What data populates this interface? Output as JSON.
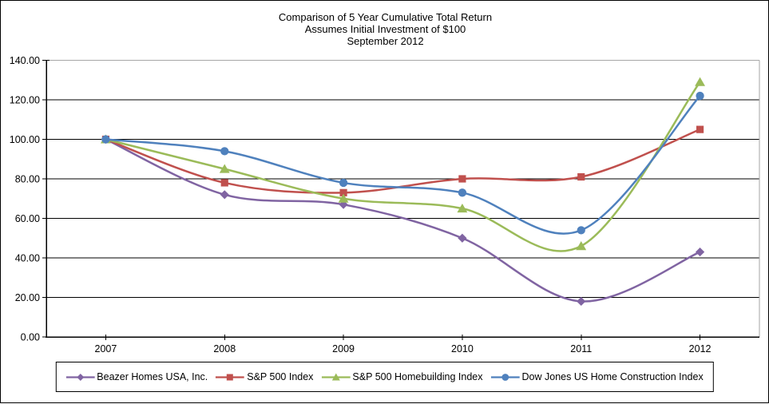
{
  "chart": {
    "title_lines": [
      "Comparison of 5 Year Cumulative Total Return",
      "Assumes Initial Investment of $100",
      "September 2012"
    ]
  },
  "chart_data": {
    "type": "line",
    "title": "Comparison of 5 Year Cumulative Total Return",
    "subtitle": "Assumes Initial Investment of $100",
    "period_label": "September 2012",
    "categories": [
      "2007",
      "2008",
      "2009",
      "2010",
      "2011",
      "2012"
    ],
    "series": [
      {
        "name": "Beazer Homes USA, Inc.",
        "marker": "diamond",
        "color": "#8064A2",
        "values": [
          100,
          72,
          67,
          50,
          18,
          43
        ]
      },
      {
        "name": "S&P 500 Index",
        "marker": "square",
        "color": "#C0504D",
        "values": [
          100,
          78,
          73,
          80,
          81,
          105
        ]
      },
      {
        "name": "S&P 500 Homebuilding Index",
        "marker": "triangle",
        "color": "#9BBB59",
        "values": [
          100,
          85,
          70,
          65,
          46,
          129
        ]
      },
      {
        "name": "Dow Jones US Home Construction Index",
        "marker": "circle",
        "color": "#4F81BD",
        "values": [
          100,
          94,
          78,
          73,
          54,
          122
        ]
      }
    ],
    "y_ticks": [
      "0.00",
      "20.00",
      "40.00",
      "60.00",
      "80.00",
      "100.00",
      "120.00",
      "140.00"
    ],
    "ylim": [
      0,
      140
    ],
    "xlabel": "",
    "ylabel": "",
    "grid": true,
    "line_style": "smooth",
    "legend_position": "bottom",
    "colors": {
      "gridline": "#000000",
      "plot_border": "#a6a6a6",
      "axis": "#000000",
      "background": "#ffffff"
    }
  }
}
